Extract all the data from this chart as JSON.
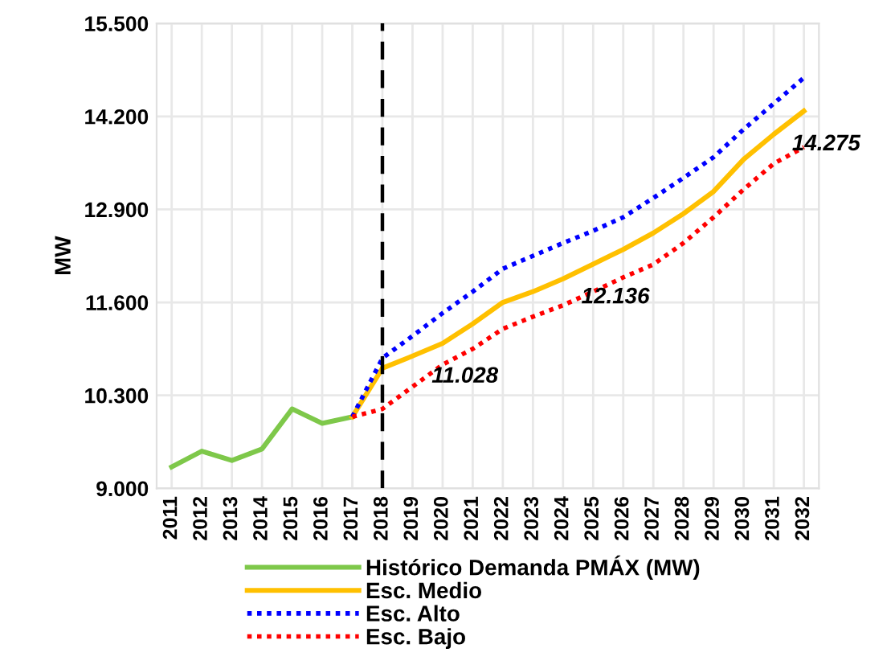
{
  "chart_data": {
    "type": "line",
    "ylabel": "MW",
    "categories": [
      "2011",
      "2012",
      "2013",
      "2014",
      "2015",
      "2016",
      "2017",
      "2018",
      "2019",
      "2020",
      "2021",
      "2022",
      "2023",
      "2024",
      "2025",
      "2026",
      "2027",
      "2028",
      "2029",
      "2030",
      "2031",
      "2032"
    ],
    "series": [
      {
        "name": "Histórico Demanda PMÁX (MW)",
        "color": "#7ec84a",
        "line_style": "solid",
        "values": [
          9300,
          9520,
          9390,
          9550,
          10110,
          9910,
          10000,
          null,
          null,
          null,
          null,
          null,
          null,
          null,
          null,
          null,
          null,
          null,
          null,
          null,
          null,
          null
        ]
      },
      {
        "name": "Esc. Medio",
        "color": "#ffc000",
        "line_style": "solid",
        "values": [
          null,
          null,
          null,
          null,
          null,
          null,
          10000,
          10680,
          10850,
          11028,
          11300,
          11600,
          11750,
          11930,
          12136,
          12340,
          12570,
          12840,
          13150,
          13600,
          13950,
          14275
        ]
      },
      {
        "name": "Esc. Alto",
        "color": "#0000ff",
        "line_style": "dotted",
        "values": [
          null,
          null,
          null,
          null,
          null,
          null,
          10000,
          10820,
          11130,
          11450,
          11750,
          12070,
          12250,
          12430,
          12600,
          12790,
          13060,
          13340,
          13630,
          14020,
          14380,
          14740
        ]
      },
      {
        "name": "Esc. Bajo",
        "color": "#ff0000",
        "line_style": "dotted",
        "values": [
          null,
          null,
          null,
          null,
          null,
          null,
          10000,
          10110,
          10420,
          10730,
          10950,
          11230,
          11400,
          11560,
          11750,
          11950,
          12130,
          12430,
          12790,
          13180,
          13540,
          13770
        ]
      }
    ],
    "ylim": [
      9000,
      15500
    ],
    "yticks": [
      {
        "value": 9000,
        "label": "9.000"
      },
      {
        "value": 10300,
        "label": "10.300"
      },
      {
        "value": 11600,
        "label": "11.600"
      },
      {
        "value": 12900,
        "label": "12.900"
      },
      {
        "value": 14200,
        "label": "14.200"
      },
      {
        "value": 15500,
        "label": "15.500"
      }
    ],
    "grid": true,
    "legend": "bottom",
    "marker": "none",
    "ref_lines": [
      {
        "axis": "x",
        "value": "2018",
        "color": "#000000",
        "line_style": "dashed"
      }
    ],
    "annotations": [
      {
        "text": "11.028",
        "x": "2020",
        "y": 11028
      },
      {
        "text": "12.136",
        "x": "2025",
        "y": 12136
      },
      {
        "text": "14.275",
        "x": "2032",
        "y": 14275
      }
    ]
  }
}
